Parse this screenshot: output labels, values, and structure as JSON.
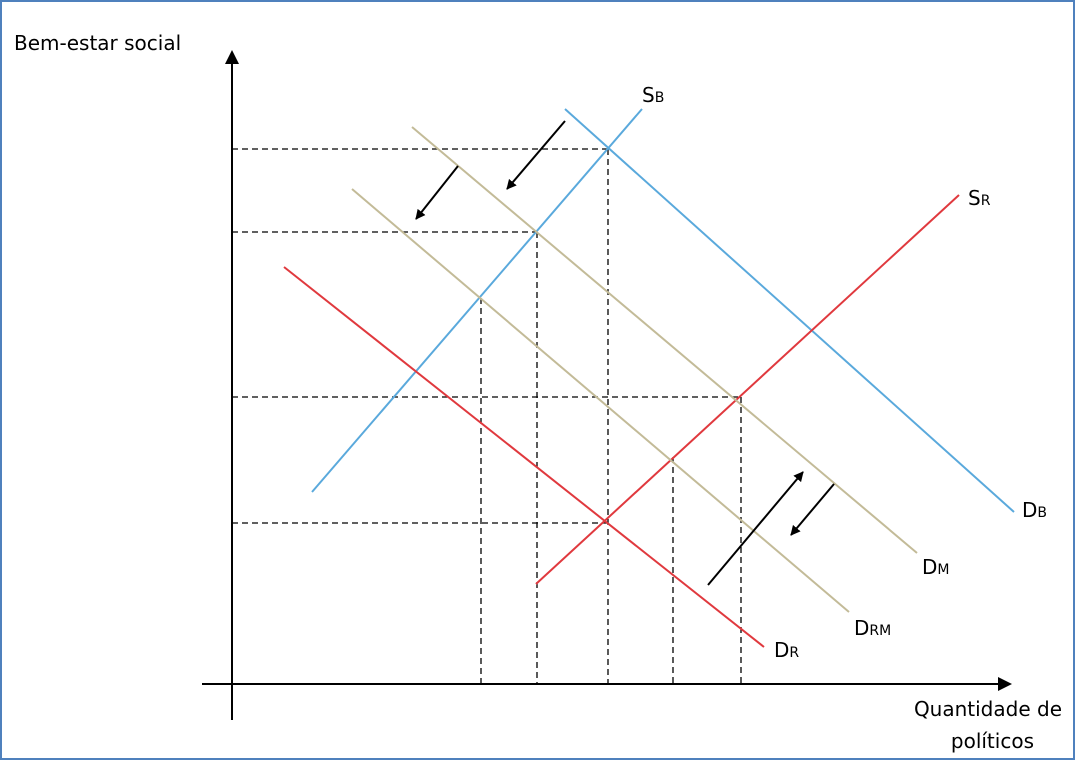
{
  "y_axis_title": "Bem-estar social",
  "x_axis_title": [
    "Quantidade de",
    "políticos"
  ],
  "colors": {
    "blue": "#5aa9dc",
    "red": "#e0393e",
    "tan": "#c3bb98",
    "axis": "#000000"
  },
  "curves": [
    {
      "id": "SB",
      "main": "S",
      "sub": "B",
      "color": "blue"
    },
    {
      "id": "DB",
      "main": "D",
      "sub": "B",
      "color": "blue"
    },
    {
      "id": "SR",
      "main": "S",
      "sub": "R",
      "color": "red"
    },
    {
      "id": "DR",
      "main": "D",
      "sub": "R",
      "color": "red"
    },
    {
      "id": "DM",
      "main": "D",
      "sub": "M",
      "color": "tan"
    },
    {
      "id": "DRM",
      "main": "D",
      "sub": "RM",
      "color": "tan"
    }
  ],
  "arrows": [
    {
      "id": "shift-dm",
      "direction": "down-left"
    },
    {
      "id": "shift-drm",
      "direction": "down-left"
    },
    {
      "id": "shift-dr-up",
      "direction": "up-right"
    },
    {
      "id": "shift-dr-down",
      "direction": "down-left"
    }
  ]
}
